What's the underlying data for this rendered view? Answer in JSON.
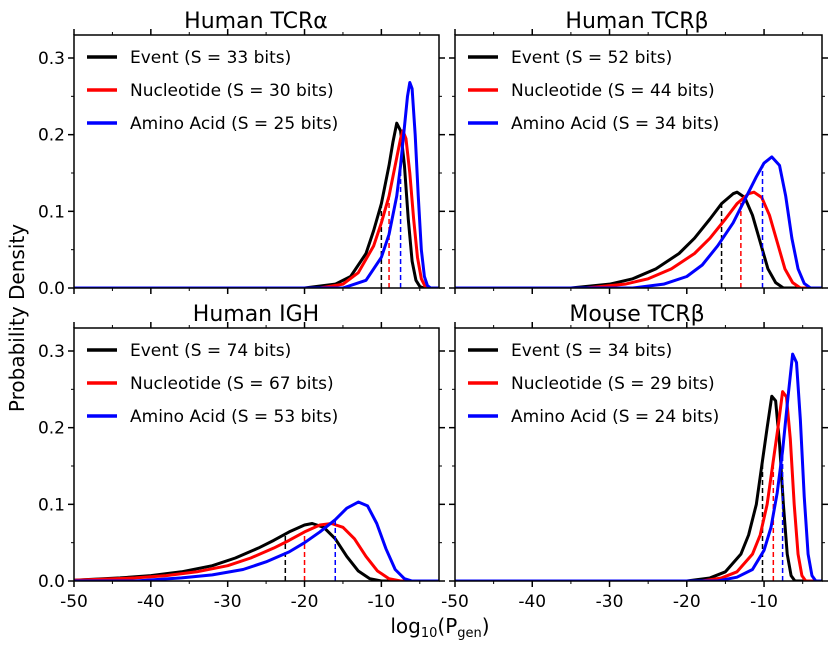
{
  "figure": {
    "ylabel": "Probability Density",
    "xlabel_main": "log",
    "xlabel_sub": "10",
    "xlabel_paren_open": "(P",
    "xlabel_subscript": "gen",
    "xlabel_paren_close": ")",
    "x_ticks": [
      "-50",
      "-40",
      "-30",
      "-20",
      "-10"
    ],
    "y_ticks": [
      "0.0",
      "0.1",
      "0.2",
      "0.3"
    ]
  },
  "colors": {
    "Event": "#000000",
    "Nucleotide": "#ff0000",
    "Amino Acid": "#0000ff"
  },
  "chart_data": [
    {
      "type": "line",
      "title": "Human TCRα",
      "xlabel": "log10(Pgen)",
      "ylabel": "Probability Density",
      "xlim": [
        -50,
        -2.5
      ],
      "ylim": [
        0,
        0.33
      ],
      "series": [
        {
          "name": "Event",
          "legend": "Event (S = 33 bits)",
          "mean": -10,
          "peak_x": -8.0,
          "peak_y": 0.215,
          "x": [
            -20,
            -16,
            -14,
            -12,
            -11,
            -10,
            -9,
            -8.5,
            -8.0,
            -7.5,
            -7.0,
            -6.5,
            -6.0,
            -5.5,
            -5.0,
            -4.5
          ],
          "y": [
            0,
            0.005,
            0.015,
            0.045,
            0.075,
            0.11,
            0.16,
            0.19,
            0.215,
            0.205,
            0.16,
            0.09,
            0.035,
            0.01,
            0.002,
            0
          ]
        },
        {
          "name": "Nucleotide",
          "legend": "Nucleotide (S = 30 bits)",
          "mean": -9,
          "peak_x": -7.2,
          "peak_y": 0.205,
          "x": [
            -18,
            -15,
            -13,
            -11,
            -10,
            -9,
            -8.5,
            -8,
            -7.5,
            -7.2,
            -6.8,
            -6.3,
            -5.8,
            -5.3,
            -4.8,
            -4.3,
            -3.8
          ],
          "y": [
            0,
            0.005,
            0.02,
            0.055,
            0.085,
            0.12,
            0.145,
            0.17,
            0.195,
            0.205,
            0.195,
            0.15,
            0.09,
            0.04,
            0.012,
            0.002,
            0
          ]
        },
        {
          "name": "Amino Acid",
          "legend": "Amino Acid (S = 25 bits)",
          "mean": -7.5,
          "peak_x": -6.3,
          "peak_y": 0.268,
          "x": [
            -15,
            -12,
            -10,
            -9,
            -8,
            -7.5,
            -7,
            -6.6,
            -6.3,
            -6.0,
            -5.6,
            -5.2,
            -4.8,
            -4.4,
            -4.0,
            -3.6
          ],
          "y": [
            0,
            0.01,
            0.04,
            0.07,
            0.12,
            0.16,
            0.21,
            0.25,
            0.268,
            0.26,
            0.2,
            0.12,
            0.05,
            0.015,
            0.003,
            0
          ]
        }
      ]
    },
    {
      "type": "line",
      "title": "Human TCRβ",
      "xlabel": "log10(Pgen)",
      "ylabel": "Probability Density",
      "xlim": [
        -50,
        -2.5
      ],
      "ylim": [
        0,
        0.33
      ],
      "series": [
        {
          "name": "Event",
          "legend": "Event (S = 52 bits)",
          "mean": -15.5,
          "peak_x": -13.5,
          "peak_y": 0.125,
          "x": [
            -35,
            -30,
            -27,
            -24,
            -21,
            -19,
            -17,
            -15.5,
            -14,
            -13.5,
            -12.5,
            -11.5,
            -10.5,
            -9.5,
            -8.5,
            -7.5
          ],
          "y": [
            0,
            0.005,
            0.012,
            0.025,
            0.045,
            0.065,
            0.09,
            0.11,
            0.123,
            0.125,
            0.118,
            0.095,
            0.06,
            0.025,
            0.007,
            0
          ]
        },
        {
          "name": "Nucleotide",
          "legend": "Nucleotide (S = 44 bits)",
          "mean": -13,
          "peak_x": -11.3,
          "peak_y": 0.125,
          "x": [
            -33,
            -28,
            -25,
            -22,
            -19,
            -17,
            -15,
            -13.5,
            -12,
            -11.3,
            -10.3,
            -9.3,
            -8.3,
            -7.3,
            -6.3,
            -5.3
          ],
          "y": [
            0,
            0.005,
            0.012,
            0.025,
            0.045,
            0.065,
            0.09,
            0.11,
            0.123,
            0.125,
            0.118,
            0.095,
            0.06,
            0.025,
            0.007,
            0
          ]
        },
        {
          "name": "Amino Acid",
          "legend": "Amino Acid (S = 34 bits)",
          "mean": -10.2,
          "peak_x": -9.0,
          "peak_y": 0.171,
          "x": [
            -27,
            -23,
            -20,
            -18,
            -16,
            -14,
            -12.5,
            -11,
            -10,
            -9.0,
            -8.0,
            -7.2,
            -6.4,
            -5.6,
            -4.8,
            -4.0
          ],
          "y": [
            0,
            0.005,
            0.015,
            0.03,
            0.055,
            0.085,
            0.115,
            0.145,
            0.163,
            0.171,
            0.16,
            0.12,
            0.065,
            0.025,
            0.006,
            0
          ]
        }
      ]
    },
    {
      "type": "line",
      "title": "Human IGH",
      "xlabel": "log10(Pgen)",
      "ylabel": "Probability Density",
      "xlim": [
        -50,
        -2.5
      ],
      "ylim": [
        0,
        0.33
      ],
      "series": [
        {
          "name": "Event",
          "legend": "Event (S = 74 bits)",
          "mean": -22.5,
          "peak_x": -19,
          "peak_y": 0.075,
          "x": [
            -50,
            -44,
            -40,
            -36,
            -32,
            -29,
            -26,
            -24,
            -22,
            -20,
            -19,
            -17.5,
            -16,
            -14.5,
            -13,
            -11.5,
            -10
          ],
          "y": [
            0.001,
            0.004,
            0.007,
            0.012,
            0.02,
            0.03,
            0.043,
            0.053,
            0.064,
            0.073,
            0.075,
            0.07,
            0.055,
            0.032,
            0.013,
            0.003,
            0
          ]
        },
        {
          "name": "Nucleotide",
          "legend": "Nucleotide (S = 67 bits)",
          "mean": -20,
          "peak_x": -16.5,
          "peak_y": 0.075,
          "x": [
            -50,
            -42,
            -38,
            -34,
            -30,
            -27,
            -24,
            -22,
            -20,
            -18,
            -16.5,
            -15,
            -13.5,
            -12,
            -10.5,
            -9,
            -7.5
          ],
          "y": [
            0.001,
            0.004,
            0.007,
            0.012,
            0.02,
            0.03,
            0.043,
            0.053,
            0.064,
            0.073,
            0.075,
            0.07,
            0.055,
            0.032,
            0.013,
            0.003,
            0
          ]
        },
        {
          "name": "Amino Acid",
          "legend": "Amino Acid (S = 53 bits)",
          "mean": -16,
          "peak_x": -13,
          "peak_y": 0.103,
          "x": [
            -42,
            -36,
            -32,
            -28,
            -25,
            -22,
            -20,
            -18,
            -16,
            -14.5,
            -13,
            -11.8,
            -10.6,
            -9.4,
            -8.2,
            -7,
            -6
          ],
          "y": [
            0,
            0.004,
            0.008,
            0.015,
            0.025,
            0.038,
            0.05,
            0.064,
            0.08,
            0.095,
            0.103,
            0.098,
            0.075,
            0.042,
            0.015,
            0.003,
            0
          ]
        }
      ]
    },
    {
      "type": "line",
      "title": "Mouse TCRβ",
      "xlabel": "log10(Pgen)",
      "ylabel": "Probability Density",
      "xlim": [
        -50,
        -2.5
      ],
      "ylim": [
        0,
        0.33
      ],
      "series": [
        {
          "name": "Event",
          "legend": "Event (S = 34 bits)",
          "mean": -10.2,
          "peak_x": -9.0,
          "peak_y": 0.241,
          "x": [
            -20,
            -17,
            -15,
            -13,
            -12,
            -11,
            -10.3,
            -9.6,
            -9.0,
            -8.5,
            -8.0,
            -7.5,
            -7.0,
            -6.5,
            -6.0
          ],
          "y": [
            0,
            0.004,
            0.012,
            0.035,
            0.06,
            0.1,
            0.15,
            0.2,
            0.241,
            0.235,
            0.18,
            0.1,
            0.035,
            0.007,
            0
          ]
        },
        {
          "name": "Nucleotide",
          "legend": "Nucleotide (S = 29 bits)",
          "mean": -8.8,
          "peak_x": -7.6,
          "peak_y": 0.247,
          "x": [
            -18,
            -15.5,
            -13.5,
            -11.5,
            -10.5,
            -9.6,
            -8.9,
            -8.2,
            -7.6,
            -7.1,
            -6.6,
            -6.1,
            -5.6,
            -5.1,
            -4.6
          ],
          "y": [
            0,
            0.004,
            0.012,
            0.035,
            0.06,
            0.1,
            0.15,
            0.2,
            0.247,
            0.24,
            0.185,
            0.1,
            0.035,
            0.007,
            0
          ]
        },
        {
          "name": "Amino Acid",
          "legend": "Amino Acid (S = 24 bits)",
          "mean": -7.6,
          "peak_x": -6.3,
          "peak_y": 0.296,
          "x": [
            -16,
            -13.5,
            -11.5,
            -10,
            -9.1,
            -8.3,
            -7.6,
            -6.9,
            -6.3,
            -5.8,
            -5.3,
            -4.8,
            -4.3,
            -3.8,
            -3.3
          ],
          "y": [
            0,
            0.005,
            0.015,
            0.04,
            0.07,
            0.115,
            0.17,
            0.24,
            0.296,
            0.285,
            0.21,
            0.11,
            0.035,
            0.007,
            0
          ]
        }
      ]
    }
  ]
}
